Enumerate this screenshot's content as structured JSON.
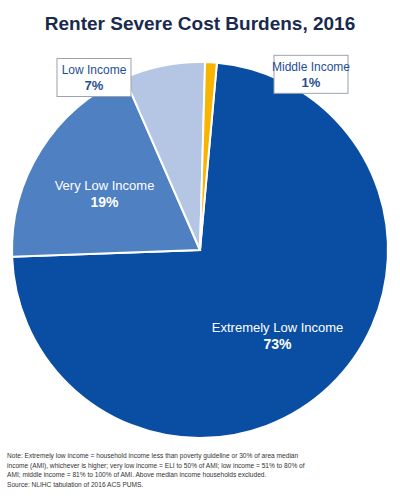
{
  "chart_data": {
    "type": "pie",
    "title": "Renter Severe Cost Burdens, 2016",
    "categories": [
      "Extremely Low Income",
      "Very Low Income",
      "Low Income",
      "Middle Income"
    ],
    "values": [
      73,
      19,
      7,
      1
    ],
    "value_labels": [
      "73%",
      "19%",
      "7%",
      "1%"
    ],
    "colors": [
      "#0a4ea3",
      "#4e80c2",
      "#b5c6e5",
      "#f7b500"
    ],
    "data_labels": true,
    "annotations": [
      "Note: Extremely low income = household income less than poverty guideline or 30% of area median",
      "income (AMI), whichever is higher; very low income = ELI to 50% of AMI; low income =  51% to 80% of",
      "AMI; middle income = 81% to 100% of AMI. Above median income households excluded.",
      "Source: NLIHC tabulation of 2016 ACS PUMS."
    ]
  }
}
